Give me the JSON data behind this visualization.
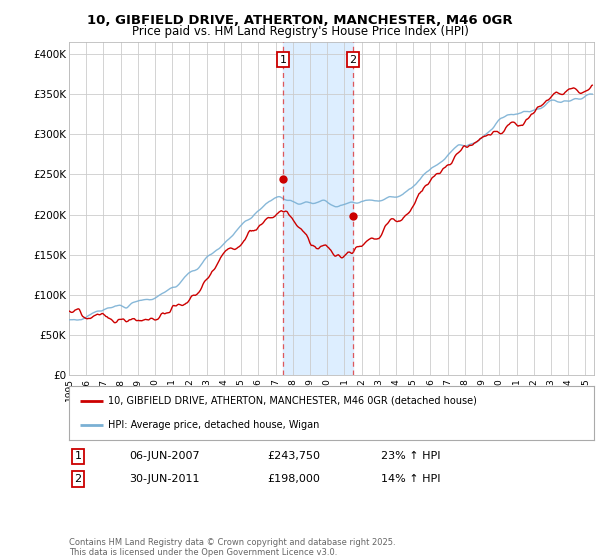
{
  "title1": "10, GIBFIELD DRIVE, ATHERTON, MANCHESTER, M46 0GR",
  "title2": "Price paid vs. HM Land Registry's House Price Index (HPI)",
  "ylabel_ticks": [
    "£0",
    "£50K",
    "£100K",
    "£150K",
    "£200K",
    "£250K",
    "£300K",
    "£350K",
    "£400K"
  ],
  "ytick_vals": [
    0,
    50000,
    100000,
    150000,
    200000,
    250000,
    300000,
    350000,
    400000
  ],
  "ylim": [
    0,
    415000
  ],
  "xlim_start": 1995.0,
  "xlim_end": 2025.5,
  "red_line_color": "#cc0000",
  "blue_line_color": "#7ab0d4",
  "shaded_color": "#ddeeff",
  "marker1_x": 2007.43,
  "marker1_y": 243750,
  "marker2_x": 2011.5,
  "marker2_y": 198000,
  "marker1_date": "06-JUN-2007",
  "marker1_price": "£243,750",
  "marker1_hpi": "23% ↑ HPI",
  "marker2_date": "30-JUN-2011",
  "marker2_price": "£198,000",
  "marker2_hpi": "14% ↑ HPI",
  "legend_line1": "10, GIBFIELD DRIVE, ATHERTON, MANCHESTER, M46 0GR (detached house)",
  "legend_line2": "HPI: Average price, detached house, Wigan",
  "footer": "Contains HM Land Registry data © Crown copyright and database right 2025.\nThis data is licensed under the Open Government Licence v3.0.",
  "xtick_years": [
    1995,
    1996,
    1997,
    1998,
    1999,
    2000,
    2001,
    2002,
    2003,
    2004,
    2005,
    2006,
    2007,
    2008,
    2009,
    2010,
    2011,
    2012,
    2013,
    2014,
    2015,
    2016,
    2017,
    2018,
    2019,
    2020,
    2021,
    2022,
    2023,
    2024,
    2025
  ],
  "bg_color": "#f7f7f7"
}
